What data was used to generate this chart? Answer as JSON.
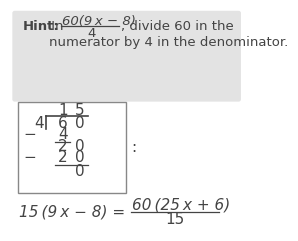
{
  "hint_bold": "Hint:",
  "hint_text_in": " In ",
  "hint_frac_num": "60(9 x − 8)",
  "hint_frac_den": "4",
  "hint_text2": ", divide 60 in the",
  "hint_text3": "numerator by 4 in the denominator.",
  "hint_bg": "#e3e3e3",
  "text_color": "#444444",
  "box_edge_color": "#888888",
  "font_size_hint": 9.5,
  "font_size_div": 11,
  "font_size_bottom": 11,
  "bottom_eq_left": "15 (9 x − 8) =",
  "bottom_frac_num": "60 (25 x + 6)",
  "bottom_frac_den": "15"
}
